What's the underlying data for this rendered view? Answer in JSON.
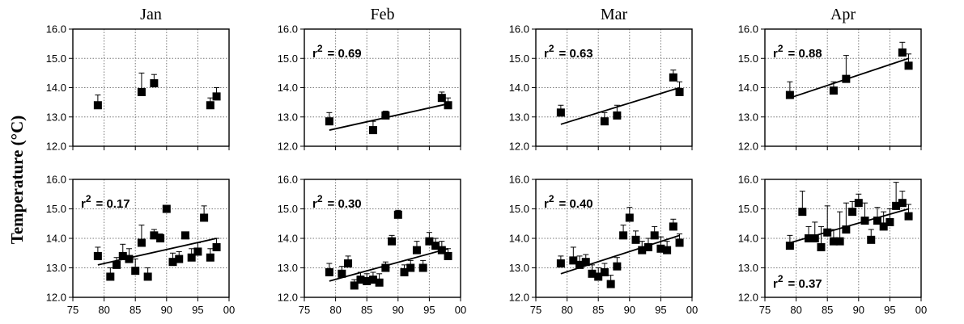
{
  "figure": {
    "ylabel": "Temperature (°C)",
    "col_titles": [
      "Jan",
      "Feb",
      "Mar",
      "Apr"
    ]
  },
  "style": {
    "marker_color": "#000000",
    "grid_color": "#777777",
    "line_color": "#000000"
  },
  "chart_data": [
    {
      "type": "scatter",
      "title": "Jan",
      "row": "top",
      "r2": null,
      "x": [
        79,
        86,
        88,
        97,
        98
      ],
      "y": [
        13.4,
        13.85,
        14.15,
        13.4,
        13.7
      ],
      "err": [
        0.35,
        0.65,
        0.3,
        0.25,
        0.3
      ],
      "trend": null,
      "xlim": [
        75,
        100
      ],
      "ylim": [
        12.0,
        16.0
      ],
      "xticks": [
        "75",
        "80",
        "85",
        "90",
        "95",
        "00"
      ],
      "yticks": [
        "12.0",
        "13.0",
        "14.0",
        "15.0",
        "16.0"
      ]
    },
    {
      "type": "scatter",
      "title": "Feb",
      "row": "top",
      "r2_prefix": "r",
      "r2_sup": "2",
      "r2_value": "= 0.69",
      "r2_pos": "upper-left",
      "x": [
        79,
        86,
        88,
        97,
        98
      ],
      "y": [
        12.85,
        12.55,
        13.05,
        13.65,
        13.4
      ],
      "err": [
        0.3,
        0.3,
        0.15,
        0.2,
        0.25
      ],
      "trend": [
        [
          79,
          12.55
        ],
        [
          98,
          13.45
        ]
      ],
      "xlim": [
        75,
        100
      ],
      "ylim": [
        12.0,
        16.0
      ],
      "xticks": [
        "75",
        "80",
        "85",
        "90",
        "95",
        "00"
      ],
      "yticks": [
        "12.0",
        "13.0",
        "14.0",
        "15.0",
        "16.0"
      ]
    },
    {
      "type": "scatter",
      "title": "Mar",
      "row": "top",
      "r2_prefix": "r",
      "r2_sup": "2",
      "r2_value": "= 0.63",
      "r2_pos": "upper-left",
      "x": [
        79,
        86,
        88,
        97,
        98
      ],
      "y": [
        13.15,
        12.85,
        13.05,
        14.35,
        13.85
      ],
      "err": [
        0.25,
        0.3,
        0.35,
        0.25,
        0.35
      ],
      "trend": [
        [
          79,
          12.75
        ],
        [
          98,
          14.0
        ]
      ],
      "xlim": [
        75,
        100
      ],
      "ylim": [
        12.0,
        16.0
      ],
      "xticks": [
        "75",
        "80",
        "85",
        "90",
        "95",
        "00"
      ],
      "yticks": [
        "12.0",
        "13.0",
        "14.0",
        "15.0",
        "16.0"
      ]
    },
    {
      "type": "scatter",
      "title": "Apr",
      "row": "top",
      "r2_prefix": "r",
      "r2_sup": "2",
      "r2_value": "= 0.88",
      "r2_pos": "upper-left",
      "x": [
        79,
        86,
        88,
        97,
        98
      ],
      "y": [
        13.75,
        13.9,
        14.3,
        15.2,
        14.75
      ],
      "err": [
        0.45,
        0.3,
        0.8,
        0.35,
        0.4
      ],
      "trend": [
        [
          79,
          13.65
        ],
        [
          98,
          15.0
        ]
      ],
      "xlim": [
        75,
        100
      ],
      "ylim": [
        12.0,
        16.0
      ],
      "xticks": [
        "75",
        "80",
        "85",
        "90",
        "95",
        "00"
      ],
      "yticks": [
        "12.0",
        "13.0",
        "14.0",
        "15.0",
        "16.0"
      ]
    },
    {
      "type": "scatter",
      "title": "",
      "row": "bottom",
      "r2_prefix": "r",
      "r2_sup": "2",
      "r2_value": "= 0.17",
      "r2_pos": "upper-left",
      "x": [
        79,
        81,
        82,
        83,
        84,
        85,
        86,
        87,
        88,
        89,
        90,
        91,
        92,
        93,
        94,
        95,
        96,
        97,
        98
      ],
      "y": [
        13.4,
        12.7,
        13.1,
        13.4,
        13.3,
        12.9,
        13.85,
        12.7,
        14.1,
        14.0,
        15.0,
        13.2,
        13.3,
        14.1,
        13.35,
        13.55,
        14.7,
        13.35,
        13.7
      ],
      "err": [
        0.3,
        0.3,
        0.25,
        0.4,
        0.35,
        0.4,
        0.6,
        0.3,
        0.2,
        0.15,
        0.1,
        0.3,
        0.25,
        0.1,
        0.3,
        0.3,
        0.4,
        0.3,
        0.3
      ],
      "trend": [
        [
          79,
          13.1
        ],
        [
          98,
          14.0
        ]
      ],
      "xlim": [
        75,
        100
      ],
      "ylim": [
        12.0,
        16.0
      ],
      "xticks": [
        "75",
        "80",
        "85",
        "90",
        "95",
        "00"
      ],
      "yticks": [
        "12.0",
        "13.0",
        "14.0",
        "15.0",
        "16.0"
      ]
    },
    {
      "type": "scatter",
      "title": "",
      "row": "bottom",
      "r2_prefix": "r",
      "r2_sup": "2",
      "r2_value": "= 0.30",
      "r2_pos": "upper-left",
      "x": [
        79,
        81,
        82,
        83,
        84,
        85,
        86,
        87,
        88,
        89,
        90,
        91,
        92,
        93,
        94,
        95,
        96,
        97,
        98
      ],
      "y": [
        12.85,
        12.8,
        13.15,
        12.4,
        12.6,
        12.55,
        12.6,
        12.5,
        13.0,
        13.9,
        14.8,
        12.85,
        13.0,
        13.6,
        13.0,
        13.9,
        13.75,
        13.6,
        13.4
      ],
      "err": [
        0.3,
        0.25,
        0.25,
        0.2,
        0.25,
        0.25,
        0.25,
        0.3,
        0.2,
        0.2,
        0.15,
        0.25,
        0.25,
        0.3,
        0.25,
        0.3,
        0.25,
        0.3,
        0.25
      ],
      "trend": [
        [
          79,
          12.55
        ],
        [
          98,
          13.65
        ]
      ],
      "xlim": [
        75,
        100
      ],
      "ylim": [
        12.0,
        16.0
      ],
      "xticks": [
        "75",
        "80",
        "85",
        "90",
        "95",
        "00"
      ],
      "yticks": [
        "12.0",
        "13.0",
        "14.0",
        "15.0",
        "16.0"
      ]
    },
    {
      "type": "scatter",
      "title": "",
      "row": "bottom",
      "r2_prefix": "r",
      "r2_sup": "2",
      "r2_value": "= 0.40",
      "r2_pos": "upper-left",
      "x": [
        79,
        81,
        82,
        83,
        84,
        85,
        86,
        87,
        88,
        89,
        90,
        91,
        92,
        93,
        94,
        95,
        96,
        97,
        98
      ],
      "y": [
        13.15,
        13.25,
        13.1,
        13.2,
        12.8,
        12.7,
        12.85,
        12.45,
        13.05,
        14.1,
        14.7,
        13.95,
        13.6,
        13.7,
        14.1,
        13.65,
        13.6,
        14.4,
        13.85
      ],
      "err": [
        0.25,
        0.45,
        0.3,
        0.25,
        0.3,
        0.3,
        0.3,
        0.3,
        0.3,
        0.35,
        0.35,
        0.3,
        0.3,
        0.3,
        0.3,
        0.4,
        0.3,
        0.25,
        0.3
      ],
      "trend": [
        [
          79,
          12.8
        ],
        [
          98,
          14.1
        ]
      ],
      "xlim": [
        75,
        100
      ],
      "ylim": [
        12.0,
        16.0
      ],
      "xticks": [
        "75",
        "80",
        "85",
        "90",
        "95",
        "00"
      ],
      "yticks": [
        "12.0",
        "13.0",
        "14.0",
        "15.0",
        "16.0"
      ]
    },
    {
      "type": "scatter",
      "title": "",
      "row": "bottom",
      "r2_prefix": "r",
      "r2_sup": "2",
      "r2_value": "= 0.37",
      "r2_pos": "lower-left",
      "x": [
        79,
        81,
        82,
        83,
        84,
        85,
        86,
        87,
        88,
        89,
        90,
        91,
        92,
        93,
        94,
        95,
        96,
        97,
        98
      ],
      "y": [
        13.75,
        14.9,
        14.0,
        14.0,
        13.7,
        14.2,
        13.9,
        13.9,
        14.3,
        14.9,
        15.2,
        14.6,
        13.95,
        14.6,
        14.4,
        14.55,
        15.1,
        15.2,
        14.75
      ],
      "err": [
        0.35,
        0.7,
        0.4,
        0.55,
        0.7,
        0.9,
        0.4,
        1.0,
        0.9,
        0.35,
        0.3,
        0.6,
        0.35,
        0.45,
        0.5,
        0.45,
        0.8,
        0.4,
        0.4
      ],
      "trend": [
        [
          79,
          13.85
        ],
        [
          98,
          15.0
        ]
      ],
      "xlim": [
        75,
        100
      ],
      "ylim": [
        12.0,
        16.0
      ],
      "xticks": [
        "75",
        "80",
        "85",
        "90",
        "95",
        "00"
      ],
      "yticks": [
        "12.0",
        "13.0",
        "14.0",
        "15.0",
        "16.0"
      ]
    }
  ]
}
